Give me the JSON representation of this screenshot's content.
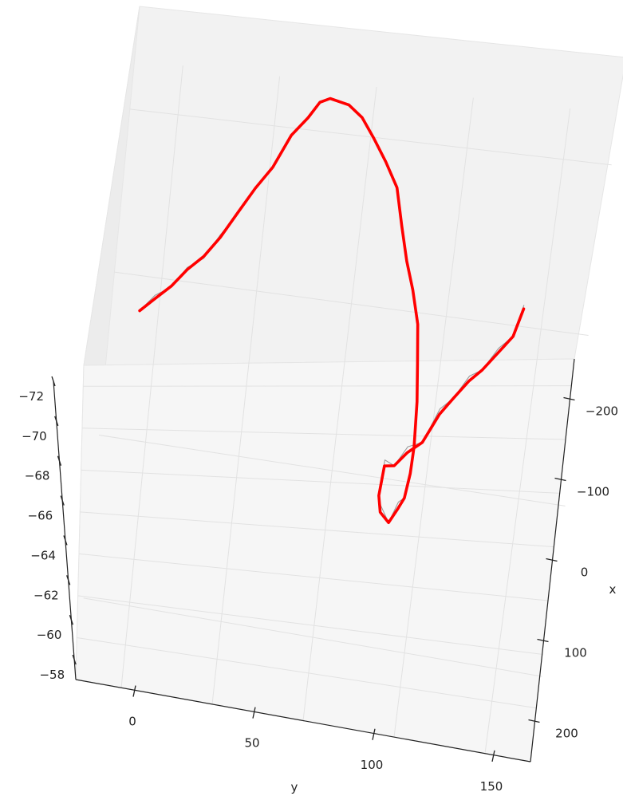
{
  "chart_data": {
    "type": "line",
    "projection": "3d",
    "title": "",
    "xlabel": "x",
    "ylabel": "y",
    "zlabel": "",
    "x_ticks": [
      -200,
      -100,
      0,
      100,
      200
    ],
    "x_tick_labels": [
      "−200",
      "−100",
      "0",
      "100",
      "200"
    ],
    "y_ticks": [
      0,
      50,
      100,
      150
    ],
    "y_tick_labels": [
      "0",
      "50",
      "100",
      "150"
    ],
    "z_ticks": [
      -58,
      -60,
      -62,
      -64,
      -66,
      -68,
      -70,
      -72
    ],
    "z_tick_labels": [
      "−58",
      "−60",
      "−62",
      "−64",
      "−66",
      "−68",
      "−70",
      "−72"
    ],
    "xlim": [
      -250,
      250
    ],
    "ylim": [
      -25,
      165
    ],
    "zlim": [
      -72,
      -57
    ],
    "grid": true,
    "series": [
      {
        "role": "raw",
        "color": "#999999",
        "points": [
          [
            -215,
            68,
            -66
          ],
          [
            -200,
            70,
            -65
          ],
          [
            -185,
            78,
            -66
          ],
          [
            -170,
            82,
            -65
          ],
          [
            -155,
            90,
            -66
          ],
          [
            -140,
            96,
            -65
          ],
          [
            -125,
            108,
            -66
          ],
          [
            -110,
            116,
            -65
          ],
          [
            -95,
            126,
            -66
          ],
          [
            -80,
            138,
            -65
          ],
          [
            -65,
            146,
            -66
          ],
          [
            -55,
            152,
            -65
          ],
          [
            -45,
            154,
            -65.5
          ],
          [
            -25,
            152,
            -65
          ],
          [
            -10,
            148,
            -65.5
          ],
          [
            5,
            140,
            -65
          ],
          [
            20,
            132,
            -65.5
          ],
          [
            35,
            122,
            -65
          ],
          [
            45,
            108,
            -65.5
          ],
          [
            55,
            94,
            -65
          ],
          [
            65,
            84,
            -65.5
          ],
          [
            75,
            70,
            -65
          ],
          [
            80,
            56,
            -65.5
          ],
          [
            85,
            40,
            -65
          ],
          [
            88,
            24,
            -65.5
          ],
          [
            88,
            12,
            -65
          ],
          [
            85,
            4,
            -65.5
          ],
          [
            80,
            -2,
            -65
          ],
          [
            72,
            -6,
            -65.5
          ],
          [
            62,
            -4,
            -65
          ],
          [
            58,
            4,
            -65.5
          ],
          [
            60,
            14,
            -65
          ],
          [
            70,
            16,
            -65.5
          ],
          [
            82,
            20,
            -65
          ],
          [
            96,
            26,
            -65.5
          ],
          [
            110,
            36,
            -65
          ],
          [
            122,
            44,
            -65.5
          ],
          [
            136,
            50,
            -65
          ],
          [
            148,
            56,
            -65.5
          ],
          [
            162,
            62,
            -65
          ],
          [
            175,
            70,
            -65.5
          ],
          [
            182,
            80,
            -65
          ]
        ]
      },
      {
        "role": "smoothed",
        "color": "#ff0000",
        "points": [
          [
            -215,
            68,
            -66
          ],
          [
            -200,
            70,
            -65.3
          ],
          [
            -185,
            78,
            -65.9
          ],
          [
            -170,
            82,
            -65.2
          ],
          [
            -155,
            90,
            -65.8
          ],
          [
            -140,
            96,
            -65.3
          ],
          [
            -125,
            108,
            -65.8
          ],
          [
            -110,
            116,
            -65.2
          ],
          [
            -95,
            126,
            -65.7
          ],
          [
            -80,
            138,
            -65.3
          ],
          [
            -65,
            146,
            -65.6
          ],
          [
            -55,
            152,
            -65.4
          ],
          [
            -45,
            154,
            -65.5
          ],
          [
            -25,
            152,
            -65.3
          ],
          [
            -10,
            148,
            -65.5
          ],
          [
            5,
            140,
            -65.3
          ],
          [
            20,
            132,
            -65.5
          ],
          [
            35,
            122,
            -65.3
          ],
          [
            45,
            108,
            -65.5
          ],
          [
            55,
            94,
            -65.3
          ],
          [
            65,
            84,
            -65.5
          ],
          [
            75,
            70,
            -65.3
          ],
          [
            80,
            56,
            -65.5
          ],
          [
            85,
            40,
            -65.3
          ],
          [
            88,
            24,
            -65.5
          ],
          [
            88,
            12,
            -65.3
          ],
          [
            85,
            4,
            -65.5
          ],
          [
            80,
            -2,
            -65.3
          ],
          [
            72,
            -6,
            -65.5
          ],
          [
            62,
            -4,
            -65.3
          ],
          [
            58,
            4,
            -65.5
          ],
          [
            60,
            14,
            -65.3
          ],
          [
            70,
            16,
            -65.5
          ],
          [
            82,
            20,
            -65.3
          ],
          [
            96,
            26,
            -65.5
          ],
          [
            110,
            36,
            -65.3
          ],
          [
            122,
            44,
            -65.5
          ],
          [
            136,
            50,
            -65.3
          ],
          [
            148,
            56,
            -65.5
          ],
          [
            162,
            62,
            -65.3
          ],
          [
            175,
            70,
            -65.5
          ],
          [
            182,
            80,
            -65.3
          ]
        ]
      }
    ]
  }
}
